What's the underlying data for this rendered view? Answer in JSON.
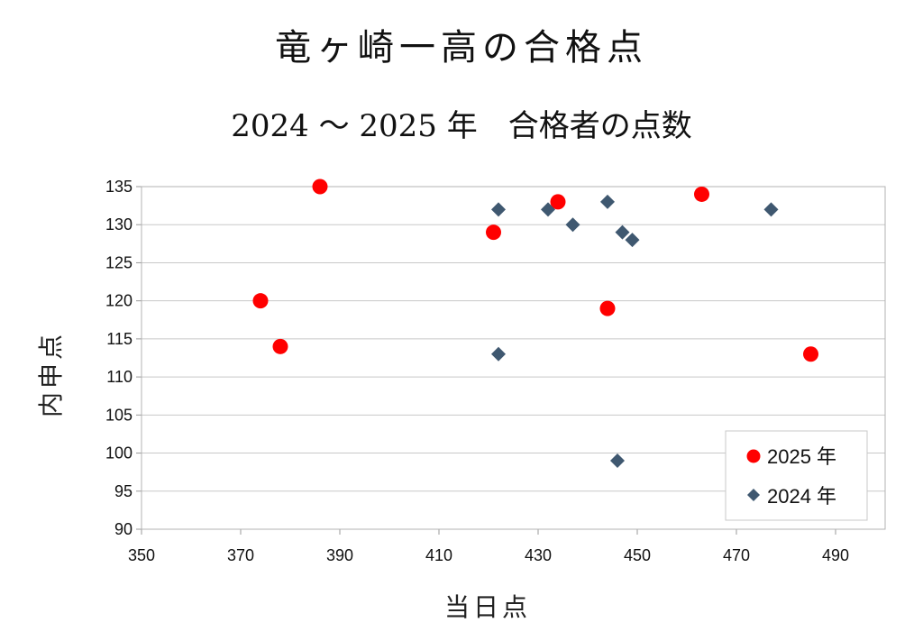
{
  "chart_data": {
    "type": "scatter",
    "title": "竜ヶ崎一高の合格点",
    "subtitle": "2024 ～ 2025 年　合格者の点数",
    "xlabel": "当日点",
    "ylabel": "内申点",
    "xlim": [
      350,
      500
    ],
    "ylim": [
      90,
      135
    ],
    "xticks": [
      350,
      370,
      390,
      410,
      430,
      450,
      470,
      490
    ],
    "yticks": [
      90,
      95,
      100,
      105,
      110,
      115,
      120,
      125,
      130,
      135
    ],
    "grid": true,
    "legend_position": "bottom-right",
    "series": [
      {
        "name": "2025 年",
        "marker": "circle",
        "color": "#ff0000",
        "points": [
          [
            386,
            135
          ],
          [
            374,
            120
          ],
          [
            378,
            114
          ],
          [
            421,
            129
          ],
          [
            434,
            133
          ],
          [
            444,
            119
          ],
          [
            463,
            134
          ],
          [
            485,
            113
          ]
        ]
      },
      {
        "name": "2024 年",
        "marker": "diamond",
        "color": "#3f5870",
        "points": [
          [
            422,
            132
          ],
          [
            422,
            113
          ],
          [
            432,
            132
          ],
          [
            437,
            130
          ],
          [
            444,
            133
          ],
          [
            447,
            129
          ],
          [
            449,
            128
          ],
          [
            446,
            99
          ],
          [
            477,
            132
          ]
        ]
      }
    ]
  }
}
